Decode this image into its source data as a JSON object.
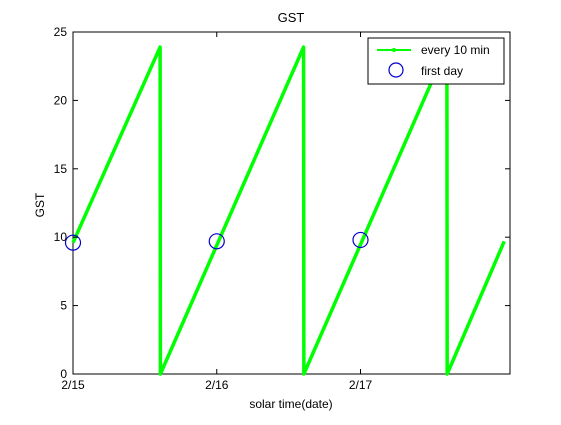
{
  "chart_data": {
    "type": "line",
    "title": "GST",
    "xlabel": "solar time(date)",
    "ylabel": "GST",
    "xlim": [
      0,
      3.04
    ],
    "ylim": [
      0,
      25
    ],
    "x_ticks": [
      {
        "value": 0,
        "label": "2/15"
      },
      {
        "value": 1,
        "label": "2/16"
      },
      {
        "value": 2,
        "label": "2/17"
      }
    ],
    "y_ticks": [
      {
        "value": 0,
        "label": "0"
      },
      {
        "value": 5,
        "label": "5"
      },
      {
        "value": 10,
        "label": "10"
      },
      {
        "value": 15,
        "label": "15"
      },
      {
        "value": 20,
        "label": "20"
      },
      {
        "value": 25,
        "label": "25"
      }
    ],
    "grid": false,
    "legend_position": "top-right",
    "series": [
      {
        "name": "every 10 min",
        "color": "#00ff00",
        "marker": "dot",
        "x": [
          0.0,
          0.606,
          0.607,
          0.608,
          1.604,
          1.605,
          1.606,
          2.601,
          2.602,
          2.603,
          3.0
        ],
        "y": [
          9.6,
          23.9,
          12.0,
          0.0,
          23.9,
          12.0,
          0.0,
          23.9,
          12.0,
          0.0,
          9.7
        ]
      },
      {
        "name": "first day",
        "color": "#0000cc",
        "marker": "circle",
        "x": [
          0.0,
          1.0,
          2.0
        ],
        "y": [
          9.6,
          9.7,
          9.8
        ]
      }
    ]
  }
}
